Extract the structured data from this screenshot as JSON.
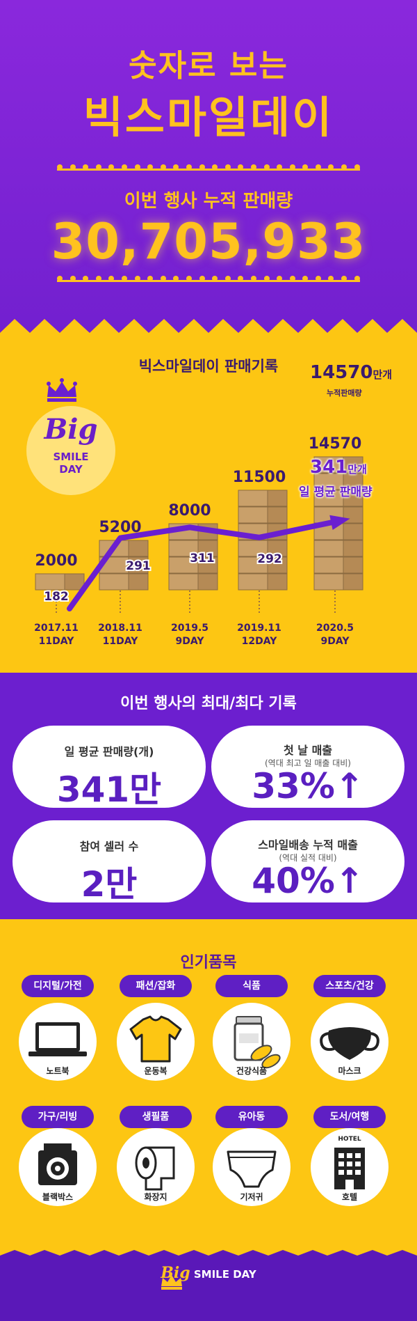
{
  "hero": {
    "title_line1": "숫자로 보는",
    "title_line2": "빅스마일데이",
    "subtitle": "이번 행사 누적 판매량",
    "total": "30,705,933"
  },
  "chart_section": {
    "title": "빅스마일데이 판매기록",
    "logo_big": "Big",
    "logo_smile": "SMILE",
    "logo_day": "DAY",
    "peak_value": "14570",
    "peak_unit": "만개",
    "peak_caption": "누적판매량",
    "daily_value": "341",
    "daily_unit": "만개",
    "daily_caption": "일 평균 판매량"
  },
  "chart_data": {
    "type": "bar",
    "categories": [
      "2017.11 11DAY",
      "2018.11 11DAY",
      "2019.5 9DAY",
      "2019.11 12DAY",
      "2020.5 9DAY"
    ],
    "series": [
      {
        "values": [
          2000,
          5200,
          8000,
          11500,
          14570
        ]
      },
      {
        "values": [
          182,
          291,
          311,
          292,
          341
        ]
      }
    ],
    "value_labels": [
      "2000",
      "5200",
      "8000",
      "11500",
      "14570"
    ],
    "line_labels": [
      "182",
      "291",
      "311",
      "292",
      "341"
    ],
    "x_labels_top": [
      "2017.11",
      "2018.11",
      "2019.5",
      "2019.11",
      "2020.5"
    ],
    "x_labels_bottom": [
      "11DAY",
      "11DAY",
      "9DAY",
      "12DAY",
      "9DAY"
    ],
    "title": "빅스마일데이 판매기록"
  },
  "records": {
    "title": "이번 행사의 최대/최다 기록",
    "cards": [
      {
        "label": "일 평균 판매량(개)",
        "sub": "",
        "value": "341만"
      },
      {
        "label": "첫 날 매출",
        "sub": "(역대 최고 일 매출 대비)",
        "value": "33%↑"
      },
      {
        "label": "참여 셀러 수",
        "sub": "",
        "value": "2만"
      },
      {
        "label": "스마일배송 누적 매출",
        "sub": "(역대 실적 대비)",
        "value": "40%↑"
      }
    ]
  },
  "popular": {
    "title": "인기품목",
    "items": [
      {
        "category": "디지털/가전",
        "item": "노트북",
        "icon": "laptop-icon"
      },
      {
        "category": "패션/잡화",
        "item": "운동복",
        "icon": "tshirt-icon"
      },
      {
        "category": "식품",
        "item": "건강식품",
        "icon": "supplement-icon"
      },
      {
        "category": "스포츠/건강",
        "item": "마스크",
        "icon": "mask-icon"
      },
      {
        "category": "가구/리빙",
        "item": "블랙박스",
        "icon": "dashcam-icon"
      },
      {
        "category": "생필품",
        "item": "화장지",
        "icon": "toilet-paper-icon"
      },
      {
        "category": "유아동",
        "item": "기저귀",
        "icon": "diaper-icon"
      },
      {
        "category": "도서/여행",
        "item": "호텔",
        "icon": "hotel-icon"
      }
    ],
    "hotel_sign": "HOTEL"
  },
  "footer": {
    "logo_big": "Big",
    "logo_text": "SMILE DAY"
  },
  "colors": {
    "purple": "#7a24d6",
    "yellow": "#fdc613",
    "dark_purple": "#5a18b8",
    "box": "#c9a06a"
  }
}
